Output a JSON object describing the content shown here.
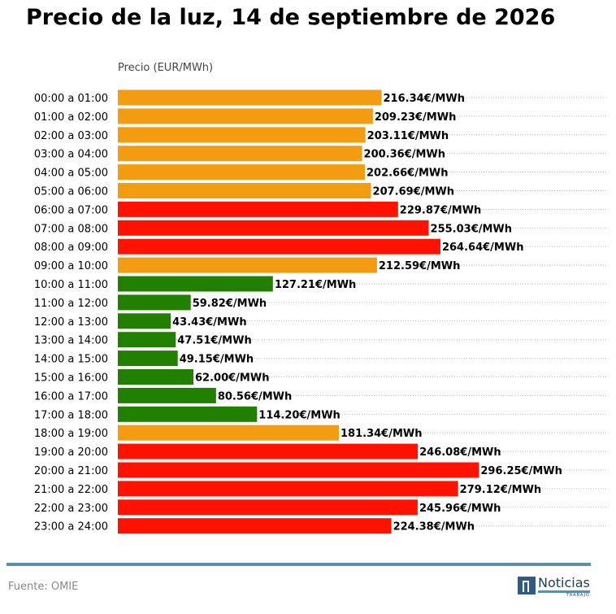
{
  "title": "Precio de la luz, 14 de septiembre de 2026",
  "source": "Fuente: OMIE",
  "logo": {
    "name": "Noticias",
    "sub": "TRABAJO"
  },
  "colors": {
    "low": "#218000",
    "mid": "#f39c12",
    "high": "#ff1300",
    "footer_line": "#5b8fad"
  },
  "chart_data": {
    "type": "bar",
    "orientation": "horizontal",
    "xlabel": "Precio (EUR/MWh)",
    "unit_suffix": "€/MWh",
    "grid": "dotted horizontal",
    "categories": [
      "00:00 a 01:00",
      "01:00 a 02:00",
      "02:00 a 03:00",
      "03:00 a 04:00",
      "04:00 a 05:00",
      "05:00 a 06:00",
      "06:00 a 07:00",
      "07:00 a 08:00",
      "08:00 a 09:00",
      "09:00 a 10:00",
      "10:00 a 11:00",
      "11:00 a 12:00",
      "12:00 a 13:00",
      "13:00 a 14:00",
      "14:00 a 15:00",
      "15:00 a 16:00",
      "16:00 a 17:00",
      "17:00 a 18:00",
      "18:00 a 19:00",
      "19:00 a 20:00",
      "20:00 a 21:00",
      "21:00 a 22:00",
      "22:00 a 23:00",
      "23:00 a 24:00"
    ],
    "values": [
      216.34,
      209.23,
      203.11,
      200.36,
      202.66,
      207.69,
      229.87,
      255.03,
      264.64,
      212.59,
      127.21,
      59.82,
      43.43,
      47.51,
      49.15,
      62.0,
      80.56,
      114.2,
      181.34,
      246.08,
      296.25,
      279.12,
      245.96,
      224.38
    ],
    "levels": [
      "mid",
      "mid",
      "mid",
      "mid",
      "mid",
      "mid",
      "high",
      "high",
      "high",
      "mid",
      "low",
      "low",
      "low",
      "low",
      "low",
      "low",
      "low",
      "low",
      "mid",
      "high",
      "high",
      "high",
      "high",
      "high"
    ]
  }
}
